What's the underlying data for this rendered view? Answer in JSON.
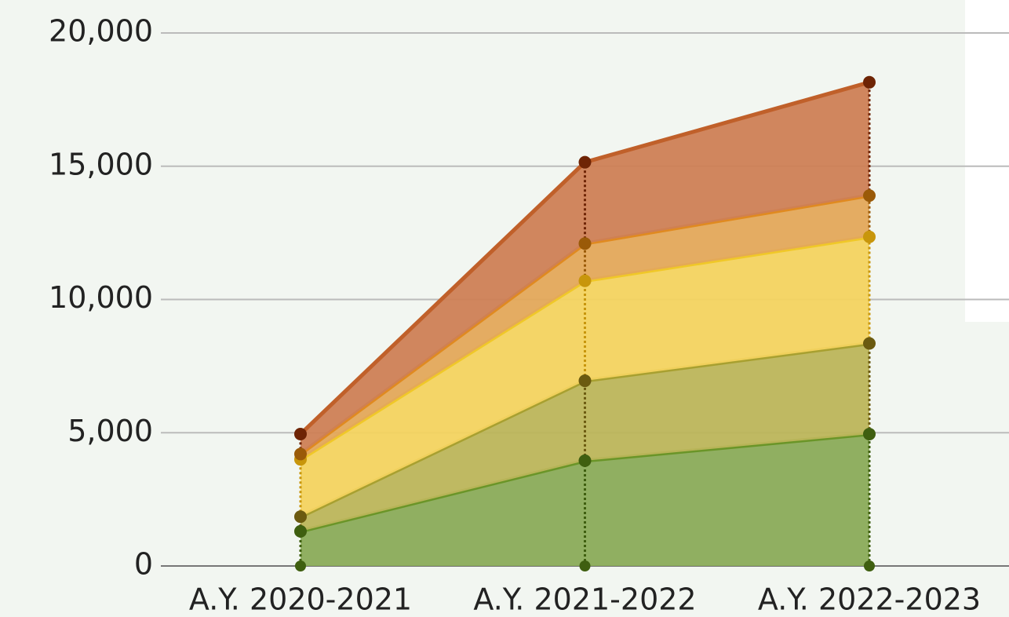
{
  "chart_data": {
    "type": "stacked_area",
    "categories": [
      "A.Y. 2020-2021",
      "A.Y. 2021-2022",
      "A.Y. 2022-2023"
    ],
    "series": [
      {
        "color": "#8aab58",
        "line_color": "#6a9528",
        "point_color": "#3f5f10",
        "values": [
          1300,
          3950,
          4950
        ]
      },
      {
        "color": "#bcb55a",
        "line_color": "#a8a030",
        "point_color": "#6b5a10",
        "values": [
          550,
          3000,
          3400
        ]
      },
      {
        "color": "#f3d35f",
        "line_color": "#f0c828",
        "point_color": "#c8960c",
        "values": [
          2150,
          3750,
          4000
        ]
      },
      {
        "color": "#e3a85a",
        "line_color": "#e08a20",
        "point_color": "#9a5a08",
        "values": [
          200,
          1400,
          1550
        ]
      },
      {
        "color": "#cd7f55",
        "line_color": "#c0602a",
        "point_color": "#6e2405",
        "values": [
          750,
          3050,
          4250
        ]
      }
    ],
    "ylim": [
      0,
      20000
    ],
    "yticks": [
      0,
      {
        "value": 5000,
        "label": "5,000"
      },
      {
        "value": 10000,
        "label": "10,000"
      },
      {
        "value": 15000,
        "label": "15,000"
      },
      {
        "value": 20000,
        "label": "20,000"
      }
    ],
    "grid": true
  }
}
